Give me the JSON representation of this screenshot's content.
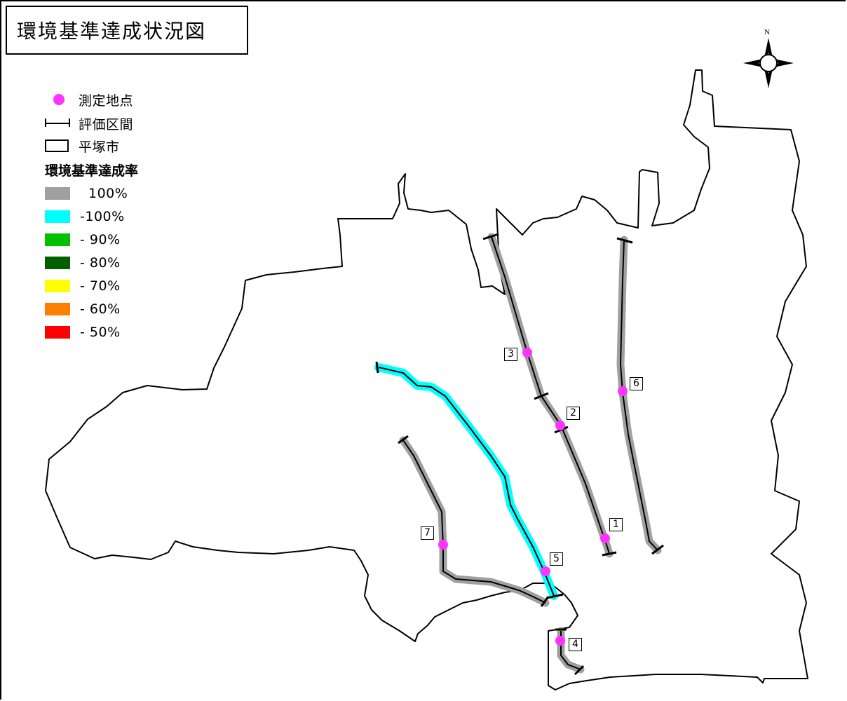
{
  "title": "環境基準達成状況図",
  "north_label": "N",
  "legend": {
    "point_label": "測定地点",
    "section_label": "評価区間",
    "city_label": "平塚市",
    "rate_heading": "環境基準達成率",
    "items": [
      {
        "label": "100%",
        "color": "#a0a0a0"
      },
      {
        "label": "-100%",
        "color": "#00ffff"
      },
      {
        "label": "- 90%",
        "color": "#00c000"
      },
      {
        "label": "- 80%",
        "color": "#006000"
      },
      {
        "label": "- 70%",
        "color": "#ffff00"
      },
      {
        "label": "- 60%",
        "color": "#ff8000"
      },
      {
        "label": "- 50%",
        "color": "#ff0000"
      }
    ]
  },
  "colors": {
    "point": "#ff33ff",
    "section_line": "#000000",
    "city_border": "#000000"
  },
  "sites": [
    {
      "number": "1"
    },
    {
      "number": "2"
    },
    {
      "number": "3"
    },
    {
      "number": "4"
    },
    {
      "number": "5"
    },
    {
      "number": "6"
    },
    {
      "number": "7"
    }
  ]
}
